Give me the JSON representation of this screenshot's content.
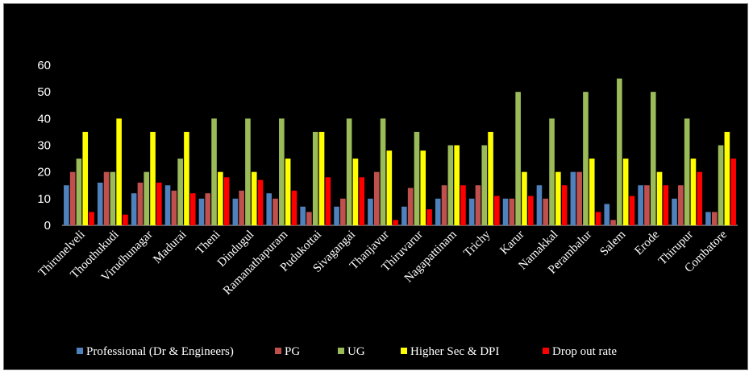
{
  "chart_data": {
    "type": "bar",
    "title": "",
    "xlabel": "",
    "ylabel": "",
    "ylim": [
      0,
      60
    ],
    "yticks": [
      0,
      10,
      20,
      30,
      40,
      50,
      60
    ],
    "grid": false,
    "legend_position": "bottom",
    "background": "#000000",
    "categories": [
      "Thirunelveli",
      "Thoothukudi",
      "Virudhunagar",
      "Madurai",
      "Theni",
      "Dindugul",
      "Ramanathapuram",
      "Pudukottai",
      "Sivagangai",
      "Thanjavur",
      "Thiruvarur",
      "Nagapattinam",
      "Trichy",
      "Karur",
      "Namakkal",
      "Perambalur",
      "Salem",
      "Erode",
      "Thirupur",
      "Combatore"
    ],
    "series": [
      {
        "name": "Professional (Dr & Engineers)",
        "color": "#4f81bd",
        "values": [
          15,
          16,
          12,
          15,
          10,
          10,
          12,
          7,
          7,
          10,
          7,
          10,
          10,
          10,
          15,
          20,
          8,
          15,
          10,
          5
        ]
      },
      {
        "name": "PG",
        "color": "#c0504d",
        "values": [
          20,
          20,
          16,
          13,
          12,
          13,
          10,
          5,
          10,
          20,
          14,
          15,
          15,
          10,
          10,
          20,
          2,
          15,
          15,
          5
        ]
      },
      {
        "name": "UG",
        "color": "#9bbb59",
        "values": [
          25,
          20,
          20,
          25,
          40,
          40,
          40,
          35,
          40,
          40,
          35,
          30,
          30,
          50,
          40,
          50,
          55,
          50,
          40,
          30
        ]
      },
      {
        "name": "Higher Sec & DPI",
        "color": "#ffff00",
        "values": [
          35,
          40,
          35,
          35,
          20,
          20,
          25,
          35,
          25,
          28,
          28,
          30,
          35,
          20,
          20,
          25,
          25,
          20,
          25,
          35
        ]
      },
      {
        "name": "Drop out rate",
        "color": "#ff0000",
        "values": [
          5,
          4,
          16,
          12,
          18,
          17,
          13,
          18,
          18,
          2,
          6,
          15,
          11,
          11,
          15,
          5,
          11,
          15,
          20,
          25
        ]
      }
    ]
  }
}
